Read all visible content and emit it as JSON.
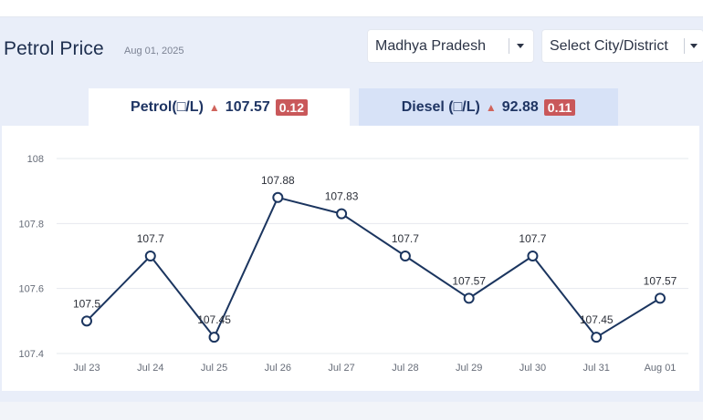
{
  "header": {
    "title": "Petrol Price",
    "date": "Aug 01, 2025"
  },
  "filters": {
    "state": "Madhya Pradesh",
    "city": "Select City/District"
  },
  "tabs": [
    {
      "label": "Petrol(□/L)",
      "price": "107.57",
      "change": "0.12",
      "arrow": "▲",
      "active": true
    },
    {
      "label": "Diesel (□/L)",
      "price": "92.88",
      "change": "0.11",
      "arrow": "▲",
      "active": false
    }
  ],
  "colors": {
    "line": "#1b355f",
    "grid": "#e6e8ee",
    "badge": "#c9585a",
    "arrow_up": "#d0645c"
  },
  "chart_data": {
    "type": "line",
    "categories": [
      "Jul 23",
      "Jul 24",
      "Jul 25",
      "Jul 26",
      "Jul 27",
      "Jul 28",
      "Jul 29",
      "Jul 30",
      "Jul 31",
      "Aug 01"
    ],
    "series": [
      {
        "values": [
          107.5,
          107.7,
          107.45,
          107.88,
          107.83,
          107.7,
          107.57,
          107.7,
          107.45,
          107.57
        ],
        "labels": [
          "107.5",
          "107.7",
          "107.45",
          "107.88",
          "107.83",
          "107.7",
          "107.57",
          "107.7",
          "107.45",
          "107.57"
        ]
      }
    ],
    "yticks": [
      108,
      107.8,
      107.6,
      107.4
    ],
    "ytick_labels": [
      "108",
      "107.8",
      "107.6",
      "107.4"
    ],
    "ylim": [
      107.4,
      108
    ],
    "grid": true,
    "legend": false,
    "title": "",
    "xlabel": "",
    "ylabel": ""
  }
}
